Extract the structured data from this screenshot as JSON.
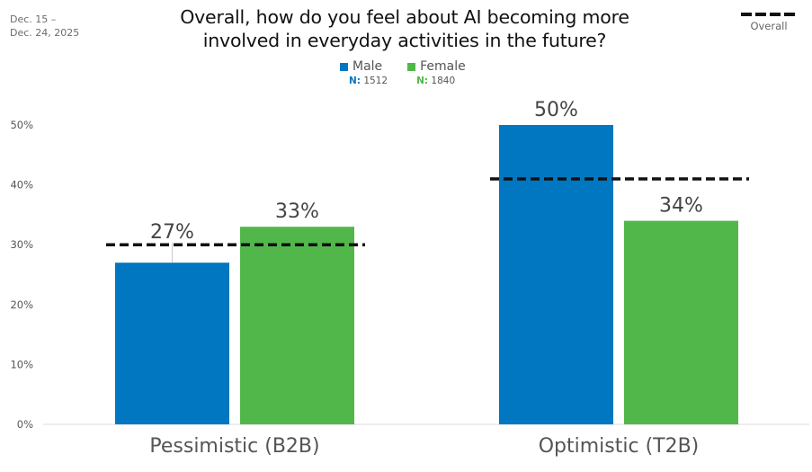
{
  "header": {
    "date_range_line1": "Dec. 15 –",
    "date_range_line2": "Dec. 24, 2025",
    "title_line1": "Overall, how do you feel about AI becoming more",
    "title_line2": "involved in everyday activities in the future?",
    "overall_legend_label": "Overall"
  },
  "legend": [
    {
      "name": "Male",
      "n_prefix": "N:",
      "n_value": "1512",
      "color": "#0077C0"
    },
    {
      "name": "Female",
      "n_prefix": "N:",
      "n_value": "1840",
      "color": "#52B74B"
    }
  ],
  "chart_data": {
    "type": "bar",
    "title": "Overall, how do you feel about AI becoming more involved in everyday activities in the future?",
    "xlabel": "",
    "ylabel": "",
    "ylim": [
      0,
      50
    ],
    "yticks": [
      "0%",
      "10%",
      "20%",
      "30%",
      "40%",
      "50%"
    ],
    "grid": false,
    "categories": [
      "Pessimistic (B2B)",
      "Optimistic (T2B)"
    ],
    "series": [
      {
        "name": "Male",
        "n": 1512,
        "color": "#0077C0",
        "values": [
          27,
          50
        ],
        "labels": [
          "27%",
          "50%"
        ]
      },
      {
        "name": "Female",
        "n": 1840,
        "color": "#52B74B",
        "values": [
          33,
          34
        ],
        "labels": [
          "33%",
          "34%"
        ]
      }
    ],
    "overall": {
      "name": "Overall",
      "style": "dashed",
      "color": "#111111",
      "values": [
        30,
        41
      ]
    },
    "legend_placement": "top-center"
  }
}
